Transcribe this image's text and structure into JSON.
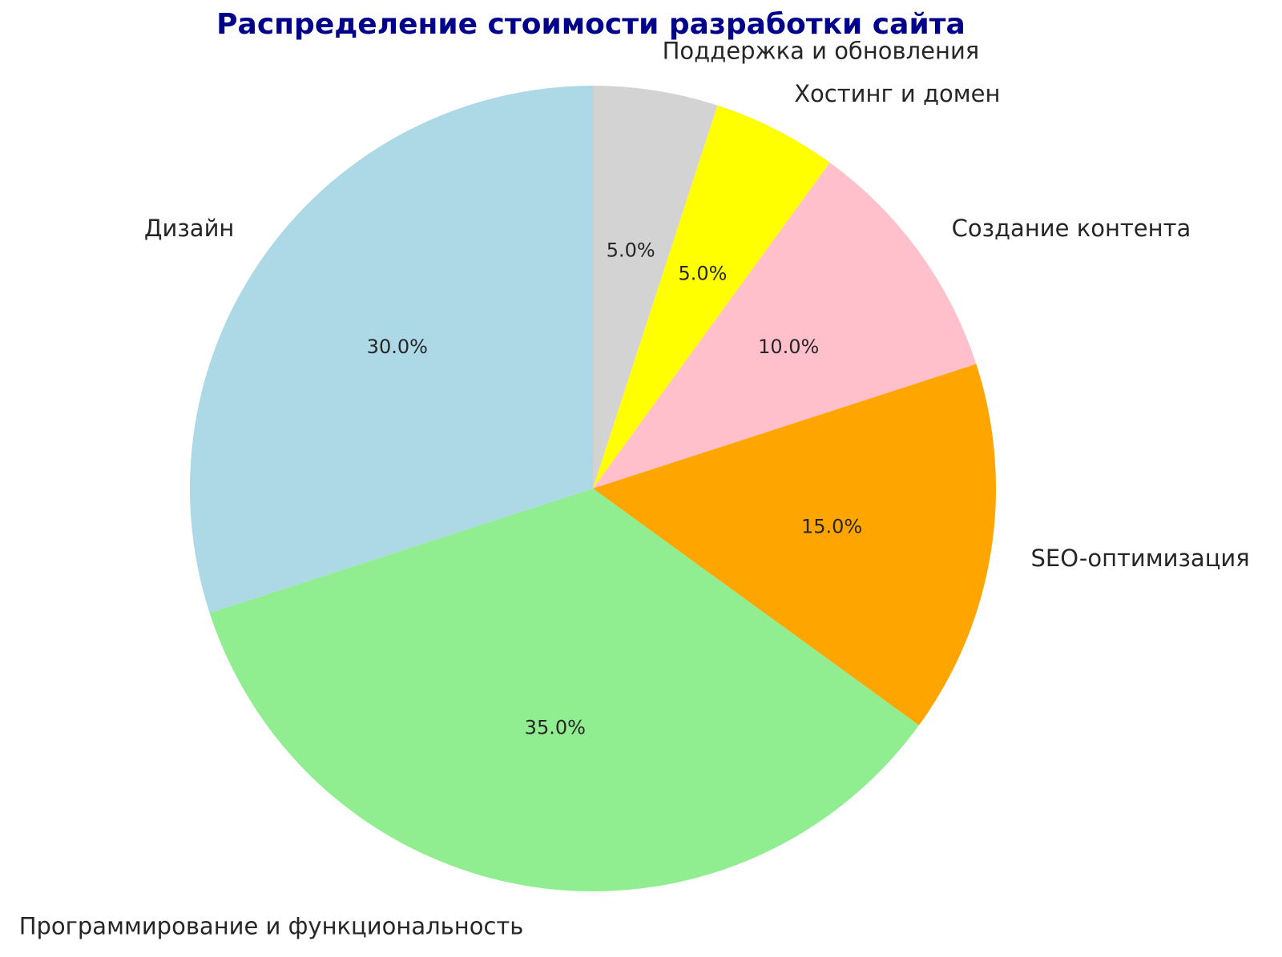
{
  "chart_data": {
    "type": "pie",
    "title": "Распределение стоимости разработки сайта",
    "title_color": "#00008B",
    "background": "#FFFFFF",
    "text_color": "#262626",
    "labels": [
      "Поддержка и обновления",
      "Хостинг и домен",
      "Создание контента",
      "SEO-оптимизация",
      "Программирование и функциональность",
      "Дизайн"
    ],
    "values": [
      5,
      5,
      10,
      15,
      35,
      30
    ],
    "percent_labels": [
      "5.0%",
      "5.0%",
      "10.0%",
      "15.0%",
      "35.0%",
      "30.0%"
    ],
    "colors": [
      "#D3D3D3",
      "#FFFF00",
      "#FFC0CB",
      "#FFA500",
      "#90EE90",
      "#ADD8E6"
    ],
    "start_angle": 90,
    "counterclockwise": false,
    "label_distance": 1.1,
    "pct_distance": 0.6,
    "legend": "none",
    "grid": false
  }
}
